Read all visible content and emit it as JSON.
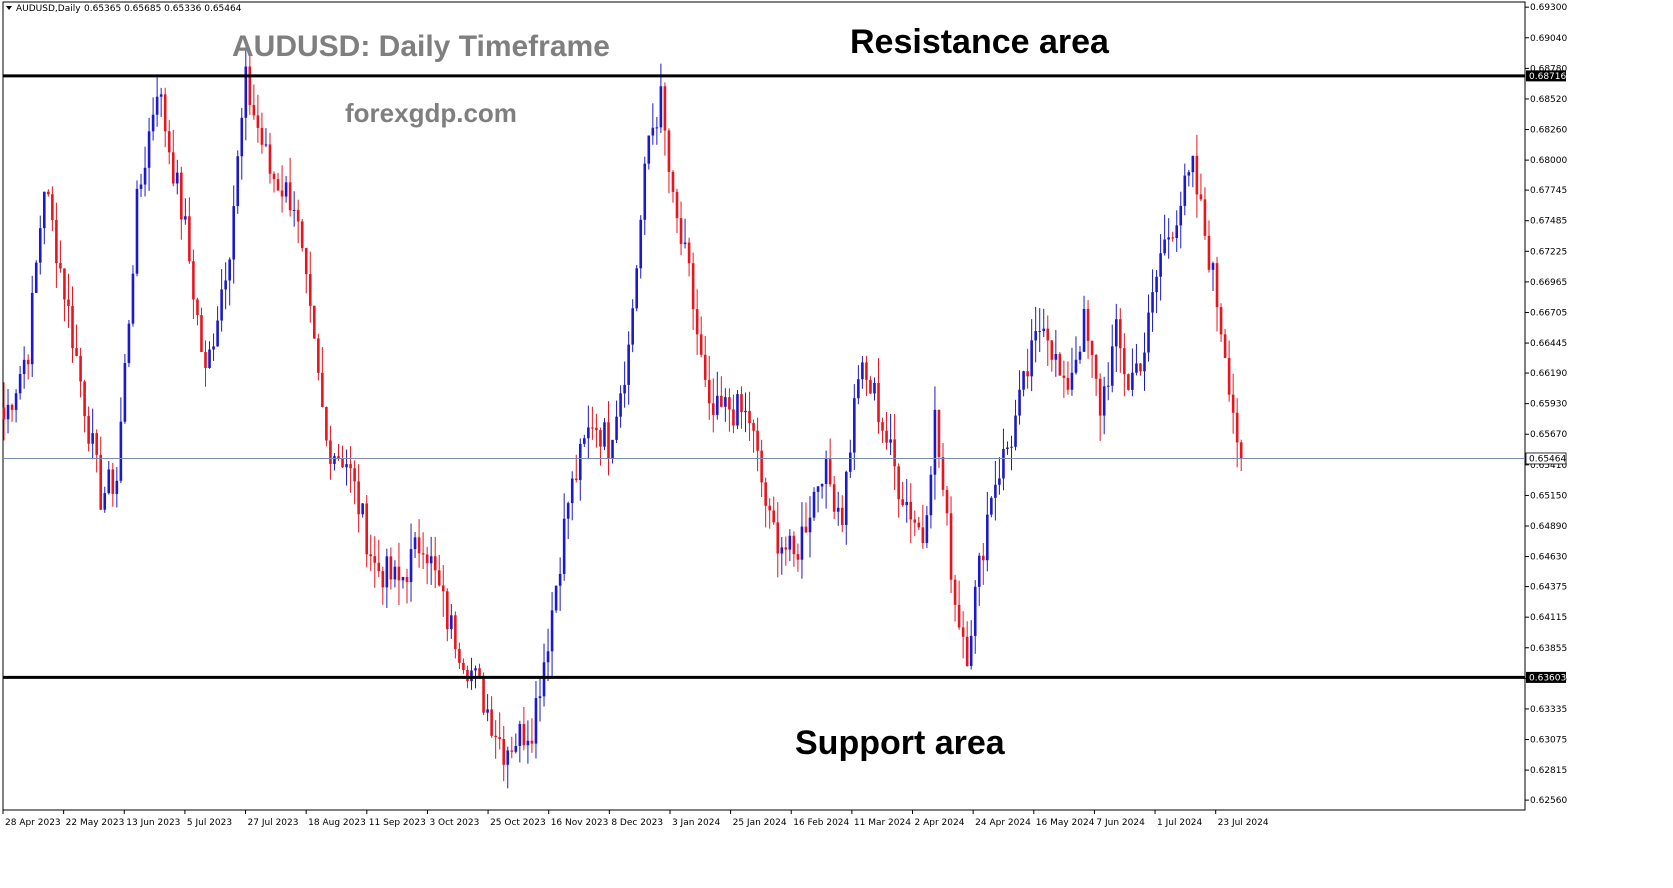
{
  "header": {
    "symbol": "AUDUSD,Daily",
    "ohlc": "0.65365 0.65685 0.65336 0.65464"
  },
  "title": "AUDUSD: Daily Timeframe",
  "website": "forexgdp.com",
  "resistance_label": "Resistance area",
  "support_label": "Support area",
  "colors": {
    "bull": "#1a1acc",
    "bear": "#e8141e",
    "level_line": "#000000",
    "current_line": "#7a8ab8",
    "title": "#7f7f7f"
  },
  "chart_data": {
    "type": "candlestick",
    "title": "AUDUSD: Daily Timeframe",
    "ylim": [
      0.6251,
      0.6931
    ],
    "y_ticks": [
      "0.69300",
      "0.69040",
      "0.68780",
      "0.68520",
      "0.68260",
      "0.68000",
      "0.67745",
      "0.67485",
      "0.67225",
      "0.66965",
      "0.66705",
      "0.66445",
      "0.66190",
      "0.65930",
      "0.65670",
      "0.65410",
      "0.65150",
      "0.64890",
      "0.64630",
      "0.64375",
      "0.64115",
      "0.63855",
      "0.63595",
      "0.63335",
      "0.63075",
      "0.62815",
      "0.62560"
    ],
    "x_ticks": [
      "28 Apr 2023",
      "22 May 2023",
      "13 Jun 2023",
      "5 Jul 2023",
      "27 Jul 2023",
      "18 Aug 2023",
      "11 Sep 2023",
      "3 Oct 2023",
      "25 Oct 2023",
      "16 Nov 2023",
      "8 Dec 2023",
      "3 Jan 2024",
      "25 Jan 2024",
      "16 Feb 2024",
      "11 Mar 2024",
      "2 Apr 2024",
      "24 Apr 2024",
      "16 May 2024",
      "7 Jun 2024",
      "1 Jul 2024",
      "23 Jul 2024"
    ],
    "resistance_level": 0.68716,
    "resistance_tag": "0.68716",
    "support_level": 0.63603,
    "support_tag": "0.63603",
    "current_price": 0.65464,
    "current_tag": "0.65464",
    "grid": false,
    "anchors": [
      {
        "i": 0,
        "p": 0.658
      },
      {
        "i": 6,
        "p": 0.664
      },
      {
        "i": 10,
        "p": 0.678
      },
      {
        "i": 15,
        "p": 0.669
      },
      {
        "i": 24,
        "p": 0.6515
      },
      {
        "i": 28,
        "p": 0.653
      },
      {
        "i": 33,
        "p": 0.676
      },
      {
        "i": 38,
        "p": 0.6865
      },
      {
        "i": 45,
        "p": 0.674
      },
      {
        "i": 50,
        "p": 0.6615
      },
      {
        "i": 56,
        "p": 0.673
      },
      {
        "i": 60,
        "p": 0.6865
      },
      {
        "i": 66,
        "p": 0.679
      },
      {
        "i": 72,
        "p": 0.6765
      },
      {
        "i": 80,
        "p": 0.656
      },
      {
        "i": 85,
        "p": 0.6545
      },
      {
        "i": 92,
        "p": 0.6455
      },
      {
        "i": 98,
        "p": 0.644
      },
      {
        "i": 104,
        "p": 0.648
      },
      {
        "i": 110,
        "p": 0.641
      },
      {
        "i": 118,
        "p": 0.635
      },
      {
        "i": 124,
        "p": 0.63
      },
      {
        "i": 131,
        "p": 0.632
      },
      {
        "i": 135,
        "p": 0.6395
      },
      {
        "i": 140,
        "p": 0.651
      },
      {
        "i": 146,
        "p": 0.658
      },
      {
        "i": 150,
        "p": 0.656
      },
      {
        "i": 155,
        "p": 0.664
      },
      {
        "i": 160,
        "p": 0.682
      },
      {
        "i": 163,
        "p": 0.685
      },
      {
        "i": 166,
        "p": 0.676
      },
      {
        "i": 170,
        "p": 0.67
      },
      {
        "i": 175,
        "p": 0.658
      },
      {
        "i": 180,
        "p": 0.659
      },
      {
        "i": 185,
        "p": 0.658
      },
      {
        "i": 190,
        "p": 0.649
      },
      {
        "i": 196,
        "p": 0.646
      },
      {
        "i": 203,
        "p": 0.654
      },
      {
        "i": 208,
        "p": 0.65
      },
      {
        "i": 212,
        "p": 0.662
      },
      {
        "i": 216,
        "p": 0.66
      },
      {
        "i": 222,
        "p": 0.6525
      },
      {
        "i": 228,
        "p": 0.648
      },
      {
        "i": 231,
        "p": 0.658
      },
      {
        "i": 236,
        "p": 0.6425
      },
      {
        "i": 239,
        "p": 0.6385
      },
      {
        "i": 245,
        "p": 0.652
      },
      {
        "i": 250,
        "p": 0.6565
      },
      {
        "i": 254,
        "p": 0.662
      },
      {
        "i": 258,
        "p": 0.667
      },
      {
        "i": 263,
        "p": 0.66
      },
      {
        "i": 268,
        "p": 0.666
      },
      {
        "i": 272,
        "p": 0.659
      },
      {
        "i": 276,
        "p": 0.665
      },
      {
        "i": 279,
        "p": 0.661
      },
      {
        "i": 283,
        "p": 0.664
      },
      {
        "i": 287,
        "p": 0.672
      },
      {
        "i": 292,
        "p": 0.6765
      },
      {
        "i": 295,
        "p": 0.679
      },
      {
        "i": 299,
        "p": 0.672
      },
      {
        "i": 303,
        "p": 0.664
      },
      {
        "i": 306,
        "p": 0.6565
      },
      {
        "i": 307,
        "p": 0.6546
      }
    ]
  }
}
